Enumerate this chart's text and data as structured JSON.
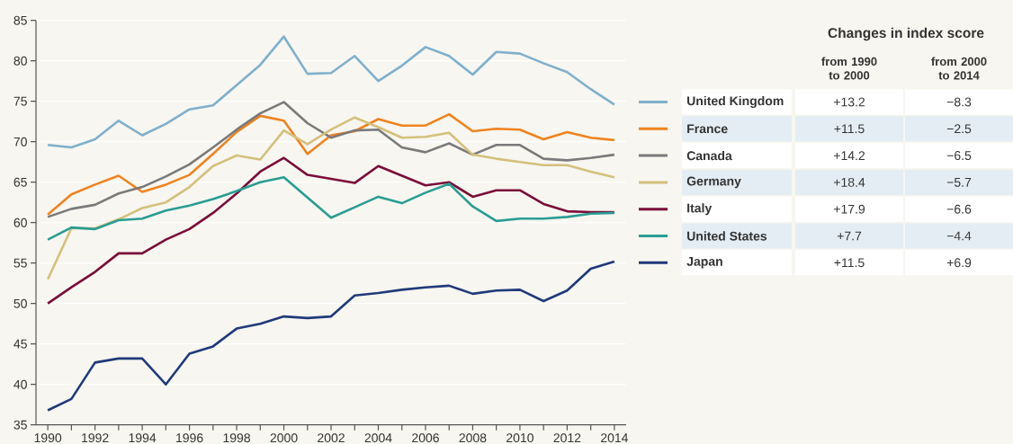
{
  "chart_data": [
    {
      "type": "line",
      "x": [
        1990,
        1991,
        1992,
        1993,
        1994,
        1995,
        1996,
        1997,
        1998,
        1999,
        2000,
        2001,
        2002,
        2003,
        2004,
        2005,
        2006,
        2007,
        2008,
        2009,
        2010,
        2011,
        2012,
        2013,
        2014
      ],
      "series": [
        {
          "name": "United Kingdom",
          "color": "#7fb0cc",
          "values": [
            69.6,
            69.3,
            70.3,
            72.6,
            70.8,
            72.2,
            74.0,
            74.5,
            77.0,
            79.5,
            83.0,
            78.4,
            78.5,
            80.6,
            77.5,
            79.4,
            81.7,
            80.6,
            78.3,
            81.1,
            80.9,
            79.7,
            78.6,
            76.5,
            74.6
          ]
        },
        {
          "name": "France",
          "color": "#f0831f",
          "values": [
            61.0,
            63.5,
            64.7,
            65.8,
            63.8,
            64.7,
            65.9,
            68.5,
            71.2,
            73.2,
            72.6,
            68.5,
            70.8,
            71.3,
            72.8,
            72.0,
            72.0,
            73.4,
            71.3,
            71.6,
            71.5,
            70.3,
            71.2,
            70.5,
            70.2
          ]
        },
        {
          "name": "Canada",
          "color": "#7a7a7a",
          "values": [
            60.7,
            61.7,
            62.2,
            63.6,
            64.4,
            65.7,
            67.2,
            69.3,
            71.5,
            73.5,
            74.9,
            72.3,
            70.5,
            71.4,
            71.5,
            69.3,
            68.7,
            69.8,
            68.4,
            69.6,
            69.6,
            67.9,
            67.7,
            68.0,
            68.4
          ]
        },
        {
          "name": "Germany",
          "color": "#d4c07c",
          "values": [
            53.0,
            59.3,
            59.3,
            60.4,
            61.8,
            62.5,
            64.4,
            67.0,
            68.3,
            67.8,
            71.4,
            69.7,
            71.5,
            73.0,
            71.8,
            70.5,
            70.6,
            71.1,
            68.4,
            67.9,
            67.5,
            67.1,
            67.1,
            66.3,
            65.6
          ]
        },
        {
          "name": "Italy",
          "color": "#7a0d3a",
          "values": [
            50.0,
            52.0,
            53.9,
            56.2,
            56.2,
            57.9,
            59.2,
            61.2,
            63.6,
            66.3,
            68.0,
            65.9,
            65.4,
            64.9,
            67.0,
            65.8,
            64.6,
            65.0,
            63.2,
            64.0,
            64.0,
            62.3,
            61.4,
            61.3,
            61.3
          ]
        },
        {
          "name": "United States",
          "color": "#2a9d94",
          "values": [
            57.9,
            59.4,
            59.2,
            60.3,
            60.5,
            61.5,
            62.1,
            62.9,
            63.9,
            65.0,
            65.6,
            63.1,
            60.6,
            61.9,
            63.2,
            62.4,
            63.7,
            64.8,
            62.0,
            60.2,
            60.5,
            60.5,
            60.7,
            61.1,
            61.2
          ]
        },
        {
          "name": "Japan",
          "color": "#1f3a7a",
          "values": [
            36.8,
            38.2,
            42.7,
            43.2,
            43.2,
            40.0,
            43.8,
            44.7,
            46.9,
            47.5,
            48.4,
            48.2,
            48.4,
            51.0,
            51.3,
            51.7,
            52.0,
            52.2,
            51.2,
            51.6,
            51.7,
            50.3,
            51.6,
            54.3,
            55.2
          ]
        }
      ],
      "xlim": [
        1989.5,
        2014.5
      ],
      "xticks": [
        1990,
        {
          "value": 1991,
          "label": null
        },
        1992,
        {
          "value": 1993,
          "label": null
        },
        1994,
        {
          "value": 1995,
          "label": null
        },
        1996,
        {
          "value": 1997,
          "label": null
        },
        1998,
        {
          "value": 1999,
          "label": null
        },
        2000,
        {
          "value": 2001,
          "label": null
        },
        2002,
        {
          "value": 2003,
          "label": null
        },
        2004,
        {
          "value": 2005,
          "label": null
        },
        2006,
        {
          "value": 2007,
          "label": null
        },
        2008,
        {
          "value": 2009,
          "label": null
        },
        2010,
        {
          "value": 2011,
          "label": null
        },
        2012,
        {
          "value": 2013,
          "label": null
        },
        2014
      ],
      "ylim": [
        35,
        85
      ],
      "yticks": [
        35,
        40,
        45,
        50,
        55,
        60,
        65,
        70,
        75,
        80,
        85
      ],
      "grid": "y",
      "legend": "right"
    },
    {
      "type": "other",
      "title": "Changes in index score",
      "annotations": [
        "from 1990 to 2000",
        "from 2000 to 2014",
        "+13.2",
        "−8.3",
        "+11.5",
        "−2.5",
        "+14.2",
        "−6.5",
        "+18.4",
        "−5.7",
        "+17.9",
        "−6.6",
        "+7.7",
        "−4.4",
        "+11.5",
        "+6.9"
      ]
    }
  ]
}
